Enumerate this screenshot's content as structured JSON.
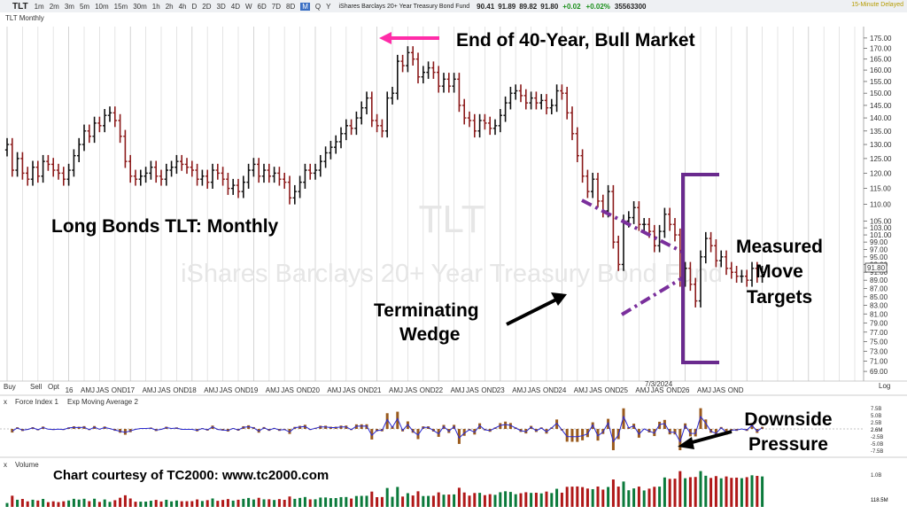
{
  "toolbar": {
    "symbol": "TLT",
    "timeframes": [
      "1m",
      "2m",
      "3m",
      "5m",
      "10m",
      "15m",
      "30m",
      "1h",
      "2h",
      "4h",
      "D",
      "2D",
      "3D",
      "4D",
      "W",
      "6D",
      "7D",
      "8D",
      "M",
      "Q",
      "Y"
    ],
    "active_timeframe": "M",
    "fund_name": "iShares Barclays 20+ Year Treasury Bond Fund",
    "open": "90.41",
    "high": "91.89",
    "low": "89.82",
    "last": "91.80",
    "change": "+0.02",
    "change_pct": "+0.02%",
    "volume": "35563300",
    "delay_note": "15-Minute Delayed",
    "up_color": "#1a8f1a"
  },
  "pane_label": "TLT Monthly",
  "watermark": {
    "symbol": "TLT",
    "name": "iShares Barclays 20+ Year Treasury Bond Fund"
  },
  "annotations": {
    "title": "Long Bonds TLT:  Monthly",
    "peak": "End of 40-Year, Bull Market",
    "wedge_line1": "Terminating",
    "wedge_line2": "Wedge",
    "targets_line1": "Measured",
    "targets_line2": "Move",
    "targets_line3": "Targets",
    "pressure_line1": "Downside",
    "pressure_line2": "Pressure",
    "courtesy": "Chart courtesy of TC2000:  www.tc2000.com"
  },
  "trade_buttons": {
    "buy": "Buy",
    "sell": "Sell",
    "opt": "Opt"
  },
  "indicator": {
    "name": "Force Index 1",
    "ma": "Exp Moving Average 2",
    "ticks": [
      "7.5B",
      "5.0B",
      "2.5B",
      "-2.5B",
      "-5.0B",
      "-7.5B"
    ],
    "last": "2.6M"
  },
  "volume_pane": {
    "label": "Volume",
    "ticks": [
      "1.0B"
    ],
    "last": "118.5M"
  },
  "date_marker": "7/3/2024",
  "log_label": "Log",
  "last_price_tag": "91.80",
  "colors": {
    "up": "#111111",
    "down": "#8b1a1a",
    "arrow_pink": "#ff2ca8",
    "wedge": "#7a2f9c",
    "bracket": "#6a2a8e",
    "force_line": "#2a2ad0",
    "volume_bar": "#0b7a3b"
  },
  "chart_data": {
    "type": "bar",
    "subtype": "ohlc",
    "title": "",
    "scale": "log",
    "ylim": [
      68,
      178
    ],
    "y_ticks": [
      69,
      71,
      73,
      75,
      77,
      79,
      81,
      83,
      85,
      87,
      89,
      91,
      93,
      95,
      97,
      99,
      101,
      103,
      105,
      110,
      115,
      120,
      125,
      130,
      135,
      140,
      145,
      150,
      155,
      160,
      165,
      170,
      175
    ],
    "x_tick_labels": [
      "16",
      "AMJ",
      "JAS",
      "OND",
      "17",
      "AMJ",
      "JAS",
      "OND",
      "18",
      "AMJ",
      "JAS",
      "OND",
      "19",
      "AMJ",
      "JAS",
      "OND",
      "20",
      "AMJ",
      "JAS",
      "OND",
      "21",
      "AMJ",
      "JAS",
      "OND",
      "22",
      "AMJ",
      "JAS",
      "OND",
      "23",
      "AMJ",
      "JAS",
      "OND",
      "24",
      "AMJ",
      "JAS",
      "OND",
      "25",
      "AMJ",
      "JAS",
      "OND",
      "26",
      "AMJ",
      "JAS",
      "OND"
    ],
    "x_start": "2015-01",
    "closes": [
      130,
      121,
      125,
      120,
      118,
      122,
      119,
      124,
      123,
      121,
      120,
      118,
      121,
      126,
      130,
      135,
      133,
      138,
      137,
      141,
      142,
      139,
      133,
      124,
      119,
      118,
      119,
      120,
      122,
      119,
      118,
      121,
      122,
      124,
      123,
      122,
      121,
      118,
      119,
      117,
      121,
      120,
      118,
      115,
      116,
      114,
      117,
      121,
      123,
      119,
      121,
      119,
      120,
      118,
      117,
      112,
      114,
      117,
      121,
      120,
      121,
      124,
      127,
      129,
      131,
      134,
      137,
      136,
      140,
      144,
      148,
      139,
      137,
      135,
      148,
      150,
      164,
      162,
      168,
      165,
      157,
      159,
      161,
      159,
      153,
      156,
      153,
      156,
      145,
      140,
      139,
      135,
      139,
      138,
      136,
      137,
      141,
      146,
      150,
      151,
      149,
      146,
      148,
      146,
      147,
      144,
      145,
      151,
      150,
      142,
      134,
      126,
      119,
      114,
      118,
      111,
      108,
      114,
      99,
      93,
      105,
      106,
      109,
      104,
      104,
      102,
      98,
      102,
      107,
      104,
      101,
      89,
      92,
      88,
      84,
      95,
      100,
      98,
      94,
      95,
      92,
      91,
      90,
      90,
      89,
      92,
      90,
      91
    ],
    "force_index_range": [
      -7.5,
      7.5
    ],
    "volume_range": [
      0,
      1.2
    ]
  }
}
